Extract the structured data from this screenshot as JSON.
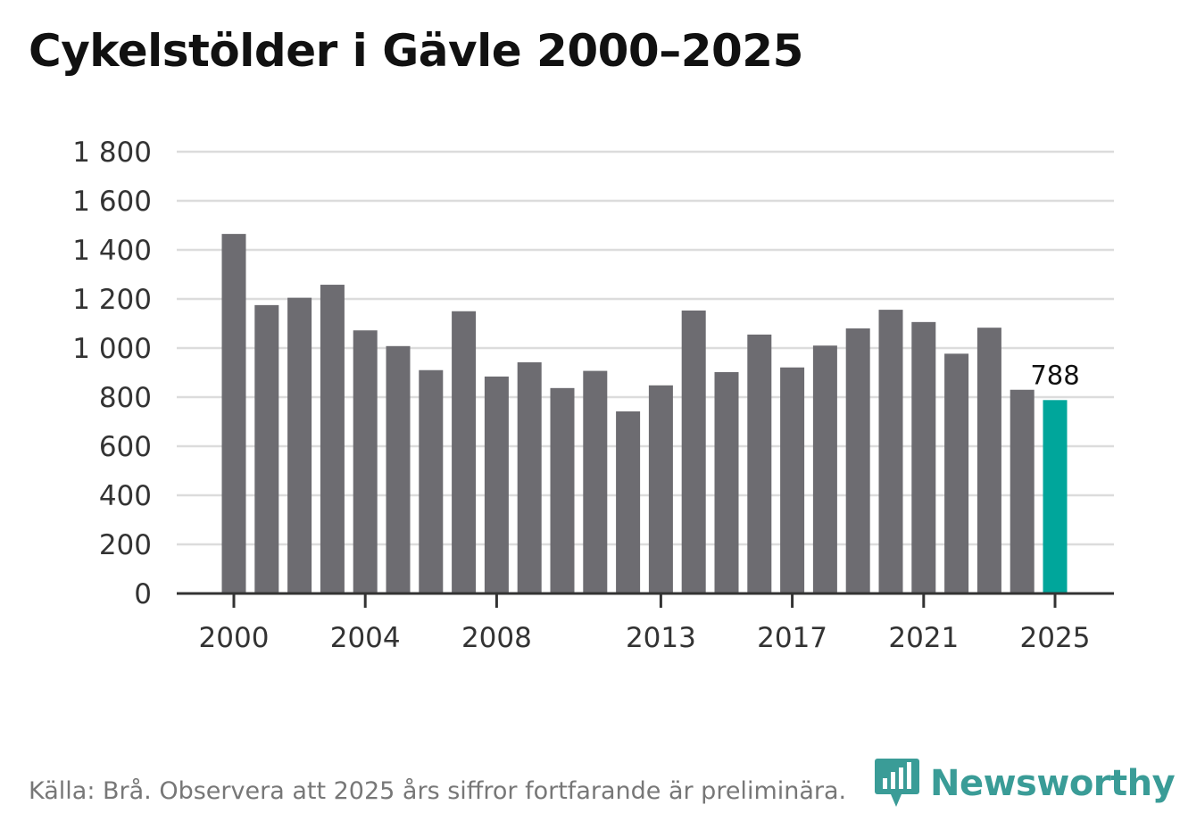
{
  "title": "Cykelstölder i Gävle 2000–2025",
  "footer": "Källa: Brå. Observera att 2025 års siffror fortfarande är preliminära.",
  "brand": {
    "name": "Newsworthy",
    "icon": "bar-chart-speech-bubble-icon",
    "color": "#3a9c97"
  },
  "colors": {
    "bar": "#6d6c71",
    "highlight": "#00a69b",
    "grid": "#dcdcdc",
    "axis": "#333333"
  },
  "chart_data": {
    "type": "bar",
    "title": "Cykelstölder i Gävle 2000–2025",
    "xlabel": "",
    "ylabel": "",
    "ylim": [
      0,
      1800
    ],
    "yticks": [
      0,
      200,
      400,
      600,
      800,
      1000,
      1200,
      1400,
      1600,
      1800
    ],
    "ytick_labels": [
      "0",
      "200",
      "400",
      "600",
      "800",
      "1 000",
      "1 200",
      "1 400",
      "1 600",
      "1 800"
    ],
    "xtick_labels": [
      "2000",
      "2004",
      "2008",
      "2013",
      "2017",
      "2021",
      "2025"
    ],
    "grid": true,
    "categories": [
      "2000",
      "2001",
      "2002",
      "2003",
      "2004",
      "2005",
      "2006",
      "2007",
      "2008",
      "2009",
      "2010",
      "2011",
      "2012",
      "2013",
      "2014",
      "2015",
      "2016",
      "2017",
      "2018",
      "2019",
      "2020",
      "2021",
      "2022",
      "2023",
      "2024",
      "2025"
    ],
    "values": [
      1465,
      1175,
      1205,
      1258,
      1072,
      1008,
      910,
      1150,
      884,
      942,
      837,
      907,
      742,
      848,
      1153,
      902,
      1055,
      921,
      1010,
      1080,
      1156,
      1106,
      977,
      1083,
      830,
      788
    ],
    "highlight_category": "2025",
    "annotations": [
      {
        "category": "2025",
        "text": "788"
      }
    ]
  }
}
